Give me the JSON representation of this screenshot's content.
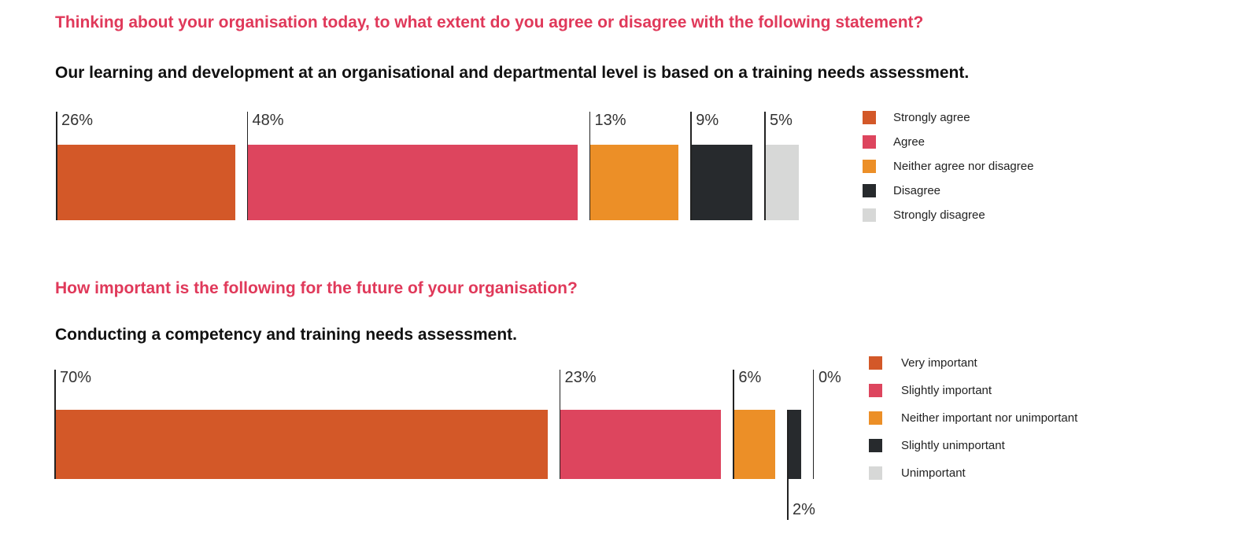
{
  "chart_data": [
    {
      "type": "bar",
      "orientation": "horizontal-stacked-segmented",
      "question": "Thinking about your organisation today, to what extent do you agree or disagree with the following statement?",
      "title": "Our learning and development at an organisational and departmental level is based on a training needs assessment.",
      "categories": [
        "Strongly agree",
        "Agree",
        "Neither agree nor disagree",
        "Disagree",
        "Strongly disagree"
      ],
      "values": [
        26,
        48,
        13,
        9,
        5
      ],
      "labels": [
        "26%",
        "48%",
        "13%",
        "9%",
        "5%"
      ],
      "colors": [
        "#d35828",
        "#dd455e",
        "#ec8f27",
        "#272a2d",
        "#d7d8d7"
      ],
      "legend_position": "right"
    },
    {
      "type": "bar",
      "orientation": "horizontal-stacked-segmented",
      "question": "How important is the following for the future of your organisation?",
      "title": "Conducting a competency and training needs assessment.",
      "categories": [
        "Very important",
        "Slightly important",
        "Neither important nor unimportant",
        "Slightly unimportant",
        "Unimportant"
      ],
      "values": [
        70,
        23,
        6,
        2,
        0
      ],
      "labels": [
        "70%",
        "23%",
        "6%",
        "2%",
        "0%"
      ],
      "colors": [
        "#d35828",
        "#dd455e",
        "#ec8f27",
        "#272a2d",
        "#d7d8d7"
      ],
      "legend_position": "right"
    }
  ]
}
